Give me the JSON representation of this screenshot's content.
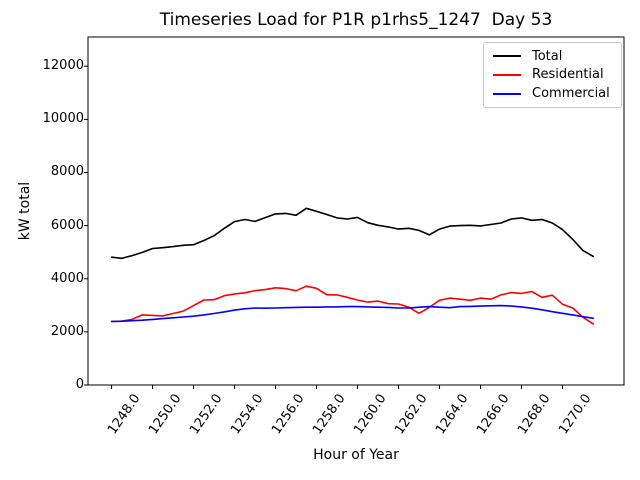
{
  "figure": {
    "background": "#ffffff",
    "frame_color": "#000000"
  },
  "chart_data": {
    "type": "line",
    "title": "Timeseries Load for P1R p1rhs5_1247  Day 53",
    "xlabel": "Hour of Year",
    "ylabel": "kW total",
    "xlim": [
      1246.85,
      1273.0
    ],
    "ylim": [
      0,
      13100
    ],
    "grid": false,
    "legend_position": "upper right",
    "x_ticks": [
      1248.0,
      1250.0,
      1252.0,
      1254.0,
      1256.0,
      1258.0,
      1260.0,
      1262.0,
      1264.0,
      1266.0,
      1268.0,
      1270.0
    ],
    "x_tick_labels": [
      "1248.0",
      "1250.0",
      "1252.0",
      "1254.0",
      "1256.0",
      "1258.0",
      "1260.0",
      "1262.0",
      "1264.0",
      "1266.0",
      "1268.0",
      "1270.0"
    ],
    "y_ticks": [
      0,
      2000,
      4000,
      6000,
      8000,
      10000,
      12000
    ],
    "x": [
      1248.0,
      1248.5,
      1249.0,
      1249.5,
      1250.0,
      1250.5,
      1251.0,
      1251.5,
      1252.0,
      1252.5,
      1253.0,
      1253.5,
      1254.0,
      1254.5,
      1255.0,
      1255.5,
      1256.0,
      1256.5,
      1257.0,
      1257.5,
      1258.0,
      1258.5,
      1259.0,
      1259.5,
      1260.0,
      1260.5,
      1261.0,
      1261.5,
      1262.0,
      1262.5,
      1263.0,
      1263.5,
      1264.0,
      1264.5,
      1265.0,
      1265.5,
      1266.0,
      1266.5,
      1267.0,
      1267.5,
      1268.0,
      1268.5,
      1269.0,
      1269.5,
      1270.0,
      1270.5,
      1271.0,
      1271.5
    ],
    "series": [
      {
        "name": "Total",
        "color": "#000000",
        "values": [
          4810,
          4770,
          4870,
          4990,
          5140,
          5170,
          5210,
          5260,
          5280,
          5440,
          5620,
          5900,
          6150,
          6230,
          6160,
          6300,
          6440,
          6460,
          6390,
          6650,
          6540,
          6420,
          6290,
          6250,
          6310,
          6110,
          6010,
          5950,
          5870,
          5900,
          5820,
          5650,
          5870,
          5980,
          6000,
          6010,
          5990,
          6040,
          6100,
          6250,
          6290,
          6200,
          6230,
          6100,
          5850,
          5480,
          5060,
          4840
        ]
      },
      {
        "name": "Residential",
        "color": "#ff0000",
        "values": [
          2390,
          2400,
          2470,
          2640,
          2620,
          2600,
          2690,
          2780,
          2990,
          3200,
          3210,
          3360,
          3430,
          3470,
          3550,
          3590,
          3660,
          3630,
          3550,
          3720,
          3640,
          3400,
          3390,
          3300,
          3200,
          3120,
          3160,
          3060,
          3050,
          2930,
          2700,
          2920,
          3190,
          3270,
          3230,
          3190,
          3270,
          3230,
          3390,
          3480,
          3450,
          3520,
          3300,
          3380,
          3040,
          2900,
          2550,
          2300
        ]
      },
      {
        "name": "Commercial",
        "color": "#0000ff",
        "values": [
          2390,
          2400,
          2420,
          2440,
          2470,
          2500,
          2530,
          2560,
          2590,
          2640,
          2690,
          2750,
          2820,
          2870,
          2900,
          2890,
          2900,
          2910,
          2920,
          2930,
          2930,
          2940,
          2940,
          2950,
          2950,
          2940,
          2930,
          2920,
          2900,
          2900,
          2930,
          2950,
          2930,
          2910,
          2950,
          2960,
          2970,
          2980,
          2990,
          2970,
          2940,
          2890,
          2830,
          2760,
          2700,
          2640,
          2570,
          2510
        ]
      }
    ]
  }
}
